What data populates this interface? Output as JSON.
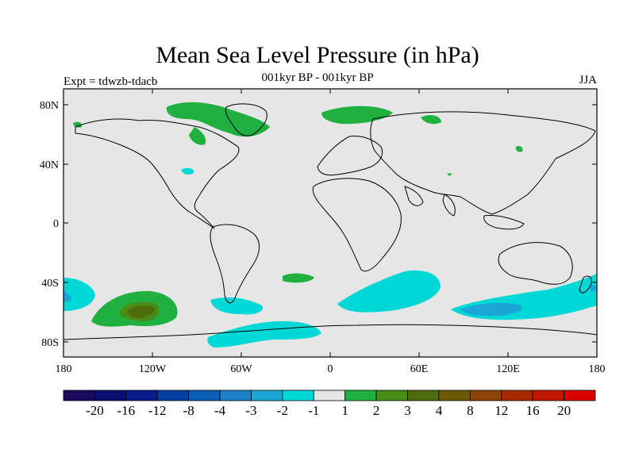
{
  "header": {
    "title": "Mean Sea Level Pressure (in hPa)",
    "subtitle": "001kyr BP - 001kyr BP",
    "experiment": "Expt = tdwzb-tdacb",
    "season": "JJA"
  },
  "map": {
    "y_ticks": [
      "80N",
      "40N",
      "0",
      "40S",
      "80S"
    ],
    "x_ticks": [
      "180",
      "120W",
      "60W",
      "0",
      "60E",
      "120E",
      "180"
    ]
  },
  "colorbar": {
    "colors": [
      "#1a0a5e",
      "#0c0f72",
      "#081d8c",
      "#073fa0",
      "#0b5fb4",
      "#1e82c8",
      "#1aa6d6",
      "#00d8d8",
      "#e6e6e6",
      "#20b040",
      "#4a8c18",
      "#4e6c0c",
      "#6e5a06",
      "#8a4404",
      "#a82a00",
      "#c01800",
      "#d80000"
    ],
    "labels": [
      "-20",
      "-16",
      "-12",
      "-8",
      "-4",
      "-3",
      "-2",
      "-1",
      "1",
      "2",
      "3",
      "4",
      "8",
      "12",
      "16",
      "20"
    ]
  }
}
